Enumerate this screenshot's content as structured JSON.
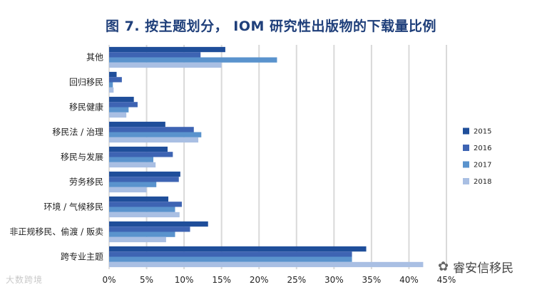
{
  "chart_data": {
    "type": "bar",
    "orientation": "horizontal",
    "title": "图 7. 按主题划分， IOM 研究性出版物的下载量比例",
    "categories": [
      "其他",
      "回归移民",
      "移民健康",
      "移民法 / 治理",
      "移民与发展",
      "劳务移民",
      "环境 / 气候移民",
      "非正规移民、偷渡 / 贩卖",
      "跨专业主题"
    ],
    "series": [
      {
        "name": "2015",
        "color": "#1f4e9a",
        "values": [
          15.5,
          1.0,
          3.3,
          7.5,
          7.8,
          9.5,
          7.9,
          13.2,
          34.3
        ]
      },
      {
        "name": "2016",
        "color": "#3e64b3",
        "values": [
          12.2,
          1.7,
          3.8,
          11.3,
          8.5,
          9.3,
          9.7,
          10.8,
          32.4
        ]
      },
      {
        "name": "2017",
        "color": "#5a93cd",
        "values": [
          22.4,
          0.5,
          2.6,
          12.3,
          5.9,
          6.3,
          8.8,
          8.8,
          32.4
        ]
      },
      {
        "name": "2018",
        "color": "#a9bfe3",
        "values": [
          15.0,
          0.6,
          2.3,
          11.9,
          6.2,
          5.0,
          9.4,
          7.6,
          41.9
        ]
      }
    ],
    "xlim": [
      0,
      45
    ],
    "xticks": [
      "0%",
      "5%",
      "10%",
      "15%",
      "20%",
      "25%",
      "30%",
      "35%",
      "40%",
      "45%"
    ],
    "grid": true,
    "legend_position": "right"
  },
  "watermarks": {
    "left": "大数跨境",
    "right": "睿安信移民"
  }
}
